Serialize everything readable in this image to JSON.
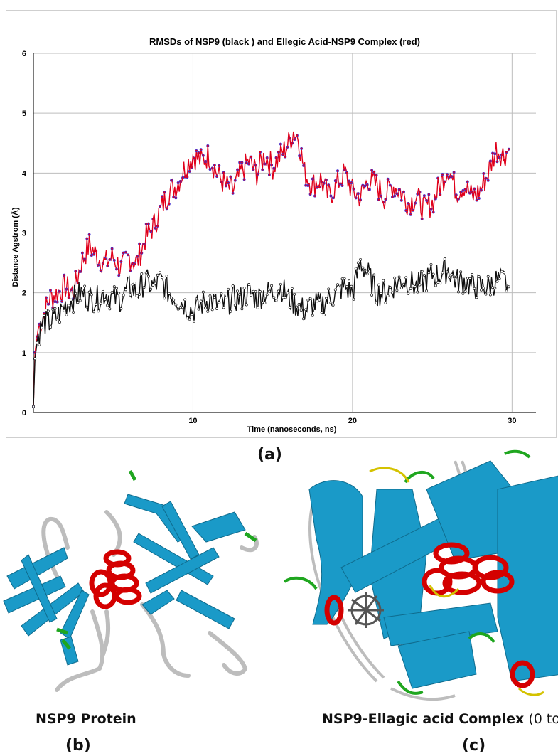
{
  "chart_data": {
    "type": "line",
    "title": "RMSDs of NSP9 (black ) and Ellegic Acid-NSP9 Complex (red)",
    "xlabel": "Time (nanoseconds, ns)",
    "ylabel": "Distance Agstrom (Å)",
    "xlim": [
      0,
      31.5
    ],
    "ylim": [
      0,
      6
    ],
    "xticks": [
      10,
      20,
      30
    ],
    "yticks": [
      0,
      1,
      2,
      3,
      4,
      5,
      6
    ],
    "grid": true,
    "series": [
      {
        "color": "#e0001b",
        "marker_color": "#3a2bd1",
        "x": [
          0,
          0.1,
          0.3,
          0.6,
          1,
          1.5,
          2,
          2.5,
          3,
          3.5,
          4,
          4.5,
          5,
          5.5,
          6,
          6.5,
          7,
          7.5,
          8,
          8.5,
          9,
          9.5,
          10,
          10.5,
          11,
          11.5,
          12,
          12.5,
          13,
          13.5,
          14,
          14.5,
          15,
          15.5,
          16,
          16.3,
          16.6,
          17,
          17.5,
          18,
          18.5,
          19,
          19.5,
          20,
          20.5,
          21,
          21.5,
          22,
          22.5,
          23,
          23.5,
          24,
          24.5,
          25,
          25.5,
          26,
          26.5,
          27,
          27.5,
          28,
          28.5,
          29,
          29.5,
          29.8
        ],
        "values": [
          0.1,
          1.0,
          1.4,
          1.6,
          1.9,
          2.0,
          2.1,
          2.0,
          2.5,
          2.8,
          2.6,
          2.5,
          2.6,
          2.4,
          2.6,
          2.5,
          2.9,
          3.1,
          3.4,
          3.7,
          3.8,
          4.1,
          4.3,
          4.2,
          4.3,
          4.0,
          3.8,
          3.7,
          4.0,
          4.2,
          4.0,
          4.3,
          4.1,
          4.3,
          4.5,
          4.7,
          4.6,
          4.0,
          3.8,
          3.9,
          3.6,
          3.8,
          4.0,
          3.7,
          3.6,
          3.9,
          3.8,
          3.6,
          3.8,
          3.7,
          3.5,
          3.6,
          3.4,
          3.5,
          3.8,
          4.1,
          3.7,
          3.8,
          3.6,
          3.7,
          4.0,
          4.4,
          4.3,
          4.4
        ]
      },
      {
        "color": "#111111",
        "marker_color": "#111111",
        "x": [
          0,
          0.1,
          0.3,
          0.6,
          1,
          1.5,
          2,
          2.5,
          3,
          3.5,
          4,
          4.5,
          5,
          5.5,
          6,
          6.5,
          7,
          7.5,
          8,
          8.5,
          9,
          9.5,
          10,
          10.5,
          11,
          11.5,
          12,
          12.5,
          13,
          13.5,
          14,
          14.5,
          15,
          15.5,
          16,
          16.5,
          17,
          17.5,
          18,
          18.5,
          19,
          19.5,
          20,
          20.5,
          21,
          21.5,
          22,
          22.5,
          23,
          23.5,
          24,
          24.5,
          25,
          25.5,
          26,
          26.5,
          27,
          27.5,
          28,
          28.5,
          29,
          29.5,
          29.8
        ],
        "values": [
          0.1,
          0.9,
          1.3,
          1.5,
          1.5,
          1.6,
          1.8,
          1.9,
          2.0,
          1.9,
          1.9,
          2.0,
          1.9,
          1.9,
          2.1,
          2.0,
          2.2,
          2.1,
          2.2,
          2.0,
          1.9,
          1.8,
          1.7,
          1.8,
          1.9,
          1.8,
          1.8,
          1.9,
          1.9,
          2.0,
          1.9,
          2.0,
          2.0,
          2.1,
          1.9,
          1.8,
          1.7,
          1.8,
          1.8,
          1.9,
          2.0,
          2.1,
          2.0,
          2.5,
          2.3,
          2.0,
          2.0,
          2.1,
          2.2,
          2.2,
          2.1,
          2.2,
          2.3,
          2.3,
          2.4,
          2.2,
          2.2,
          2.1,
          2.1,
          2.1,
          2.2,
          2.2,
          2.1
        ]
      }
    ]
  },
  "panels": {
    "a_label": "(a)",
    "b_label": "(b)",
    "c_label": "(c)",
    "b_caption": "NSP9 Protein",
    "c_caption_bold": "NSP9-Ellagic acid Complex",
    "c_caption_rest": " (0 to"
  },
  "colors": {
    "strand": "#1a9ac8",
    "helix": "#d40000",
    "coil": "#bdbdbd",
    "turn": "#1fa61f",
    "ligand": "#555555",
    "highlight": "#d4c200"
  }
}
